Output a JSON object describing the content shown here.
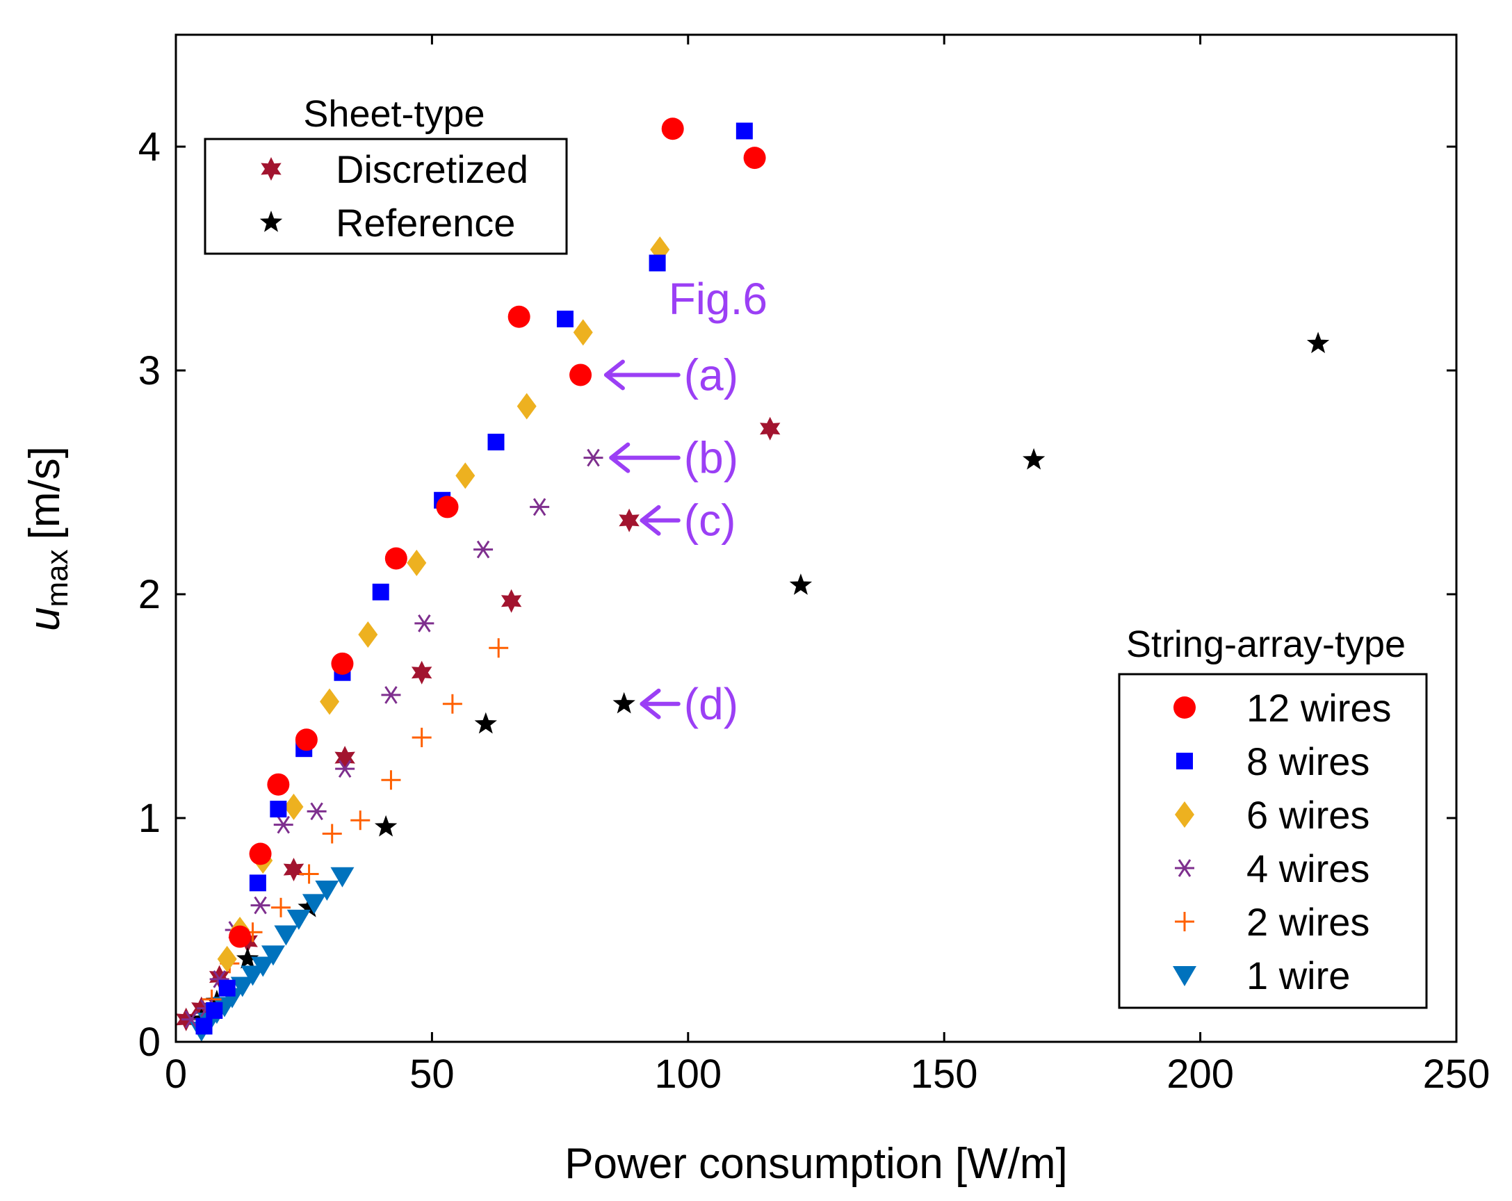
{
  "chart_data": {
    "type": "scatter",
    "xlabel": "Power consumption [W/m]",
    "ylabel_main": "u",
    "ylabel_sub": "max",
    "ylabel_unit": "[m/s]",
    "xlim": [
      0,
      250
    ],
    "ylim": [
      0,
      4.5
    ],
    "xticks": [
      0,
      50,
      100,
      150,
      200,
      250
    ],
    "yticks": [
      0,
      1,
      2,
      3,
      4
    ],
    "grid": false,
    "legend_sheet": {
      "title": "Sheet-type",
      "placement": "top-left",
      "entries": [
        "Discretized",
        "Reference"
      ]
    },
    "legend_string": {
      "title": "String-array-type",
      "placement": "bottom-right",
      "entries": [
        "12 wires",
        "8 wires",
        "6 wires",
        "4 wires",
        "2 wires",
        "1 wire"
      ]
    },
    "series": [
      {
        "name": "12 wires",
        "group": "string",
        "marker": "circle",
        "color": "#ff0000",
        "x": [
          12.5,
          16.5,
          20,
          25.5,
          32.5,
          43,
          53,
          67,
          79,
          97,
          113
        ],
        "y": [
          0.47,
          0.84,
          1.15,
          1.35,
          1.69,
          2.16,
          2.39,
          3.24,
          2.98,
          4.08,
          3.95
        ]
      },
      {
        "name": "8 wires",
        "group": "string",
        "marker": "square",
        "color": "#0000ff",
        "x": [
          5.5,
          7.5,
          10,
          16,
          20,
          25,
          32.5,
          40,
          52,
          62.5,
          76,
          94,
          111
        ],
        "y": [
          0.07,
          0.14,
          0.24,
          0.71,
          1.04,
          1.31,
          1.65,
          2.01,
          2.42,
          2.68,
          3.23,
          3.48,
          4.07
        ]
      },
      {
        "name": "6 wires",
        "group": "string",
        "marker": "diamond",
        "color": "#edb120",
        "x": [
          10,
          12.5,
          17,
          23,
          30,
          37.5,
          47,
          56.5,
          68.5,
          79.5,
          94.5
        ],
        "y": [
          0.37,
          0.5,
          0.81,
          1.05,
          1.52,
          1.82,
          2.14,
          2.53,
          2.84,
          3.17,
          3.54
        ]
      },
      {
        "name": "4 wires",
        "group": "string",
        "marker": "asterisk",
        "color": "#7e2f8e",
        "x": [
          3,
          6,
          8.5,
          11.5,
          16.5,
          21,
          27.5,
          33,
          42,
          48.5,
          60,
          71,
          81.5
        ],
        "y": [
          0.1,
          0.15,
          0.28,
          0.5,
          0.61,
          0.97,
          1.03,
          1.22,
          1.55,
          1.87,
          2.2,
          2.39,
          2.61
        ]
      },
      {
        "name": "2 wires",
        "group": "string",
        "marker": "plus",
        "color": "#ff6000",
        "x": [
          7,
          10.5,
          15,
          20.5,
          26,
          30.5,
          36,
          42,
          48,
          54,
          63
        ],
        "y": [
          0.19,
          0.35,
          0.49,
          0.6,
          0.75,
          0.93,
          0.99,
          1.17,
          1.36,
          1.51,
          1.76
        ]
      },
      {
        "name": "1 wire",
        "group": "string",
        "marker": "triangle-down",
        "color": "#0072bd",
        "x": [
          5,
          6.5,
          8,
          9.5,
          11,
          13,
          15,
          17,
          19,
          21.5,
          24,
          27,
          29.5,
          32.5
        ],
        "y": [
          0.05,
          0.09,
          0.13,
          0.16,
          0.2,
          0.25,
          0.3,
          0.34,
          0.39,
          0.48,
          0.55,
          0.62,
          0.68,
          0.74
        ]
      },
      {
        "name": "Discretized",
        "group": "sheet",
        "marker": "hexagram",
        "color": "#a2142f",
        "x": [
          2,
          5,
          8.5,
          14,
          23,
          33,
          48,
          65.5,
          88.5,
          116
        ],
        "y": [
          0.1,
          0.15,
          0.29,
          0.45,
          0.77,
          1.27,
          1.65,
          1.97,
          2.33,
          2.74
        ]
      },
      {
        "name": "Reference",
        "group": "sheet",
        "marker": "pentagram",
        "color": "#000000",
        "x": [
          5,
          8,
          14,
          26,
          41,
          60.5,
          87.5,
          122,
          167.5,
          223
        ],
        "y": [
          0.1,
          0.18,
          0.37,
          0.6,
          0.96,
          1.42,
          1.51,
          2.04,
          2.6,
          3.12
        ]
      }
    ],
    "annotations": [
      {
        "text": "Fig.6",
        "x": 97,
        "y": 3.32,
        "color": "#9b3ff5"
      },
      {
        "text": "(a)",
        "x": 100,
        "y": 2.98,
        "arrow_to_x": 84,
        "color": "#9b3ff5"
      },
      {
        "text": "(b)",
        "x": 100,
        "y": 2.61,
        "arrow_to_x": 85,
        "color": "#9b3ff5"
      },
      {
        "text": "(c)",
        "x": 100,
        "y": 2.33,
        "arrow_to_x": 91,
        "color": "#9b3ff5"
      },
      {
        "text": "(d)",
        "x": 100,
        "y": 1.51,
        "arrow_to_x": 91,
        "color": "#9b3ff5"
      }
    ]
  }
}
